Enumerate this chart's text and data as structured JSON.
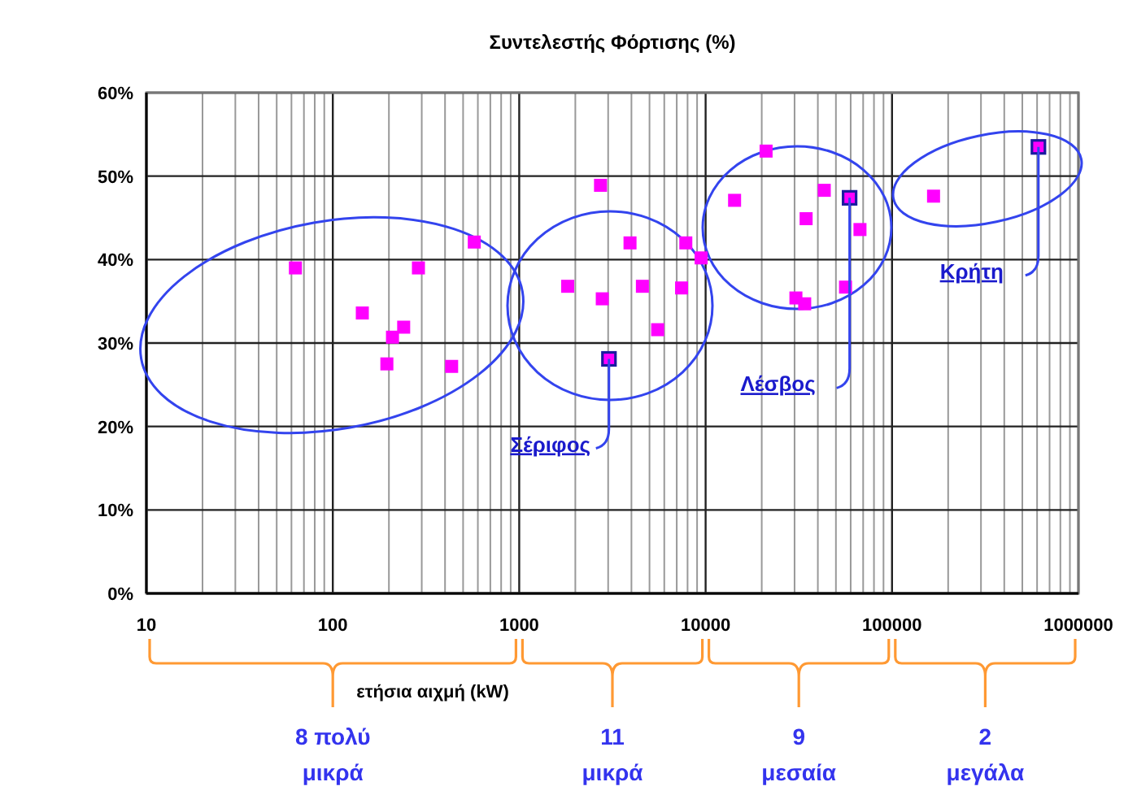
{
  "chart_data": {
    "type": "scatter",
    "title": "Συντελεστής Φόρτισης (%)",
    "xlabel": "ετήσια αιχμή (kW)",
    "log": "x",
    "xlim": [
      10,
      1000000
    ],
    "xticks": [
      10,
      100,
      1000,
      10000,
      100000,
      1000000
    ],
    "ylim": [
      0,
      60
    ],
    "yticks": [
      {
        "value": 0,
        "label": "0%"
      },
      {
        "value": 10,
        "label": "10%"
      },
      {
        "value": 20,
        "label": "20%"
      },
      {
        "value": 30,
        "label": "30%"
      },
      {
        "value": 40,
        "label": "40%"
      },
      {
        "value": 50,
        "label": "50%"
      },
      {
        "value": 60,
        "label": "60%"
      }
    ],
    "grid": true,
    "marker": "square",
    "series": [
      {
        "color": "#ff00ff",
        "x": [
          63,
          144,
          240,
          209,
          195,
          288,
          434,
          574,
          2730,
          3930,
          7830,
          9460,
          1820,
          2790,
          4580,
          7430,
          5530,
          21100,
          14300,
          43300,
          34600,
          67300,
          30500,
          34000,
          56300,
          167000
        ],
        "values": [
          39,
          33.6,
          31.9,
          30.7,
          27.5,
          39,
          27.2,
          42.1,
          48.9,
          42,
          42,
          40.2,
          36.8,
          35.3,
          36.8,
          36.6,
          31.6,
          53,
          47.1,
          48.3,
          44.9,
          43.6,
          35.4,
          34.7,
          36.7,
          47.6
        ]
      },
      {
        "color": "#1a1aa0",
        "x": [
          3030,
          59200,
          610000
        ],
        "values": [
          28.1,
          47.4,
          53.5
        ]
      }
    ],
    "annotations": [
      {
        "text": "Σέριφος",
        "x": 3030,
        "y": 28.1
      },
      {
        "text": "Λέσβος",
        "x": 59200,
        "y": 47.4
      },
      {
        "text": "Κρήτη",
        "x": 610000,
        "y": 53.5
      },
      "8 πολύ\nμικρά",
      "11\nμικρά",
      "9\nμεσαία",
      "2\nμεγάλα"
    ]
  }
}
